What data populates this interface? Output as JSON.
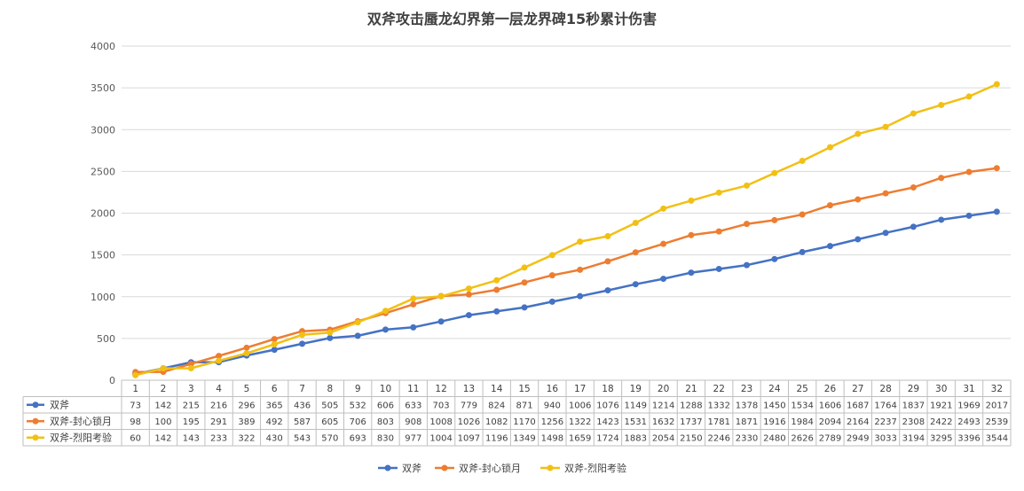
{
  "chart_data": {
    "type": "line",
    "title": "双斧攻击蜃龙幻界第一层龙界碑15秒累计伤害",
    "xlabel": "",
    "ylabel": "",
    "ylim": [
      0,
      4000
    ],
    "yticks": [
      "0",
      "500",
      "1000",
      "1500",
      "2000",
      "2500",
      "3000",
      "3500",
      "4000"
    ],
    "grid": true,
    "legend_position": "bottom",
    "data_table": true,
    "categories": [
      "1",
      "2",
      "3",
      "4",
      "5",
      "6",
      "7",
      "8",
      "9",
      "10",
      "11",
      "12",
      "13",
      "14",
      "15",
      "16",
      "17",
      "18",
      "19",
      "20",
      "21",
      "22",
      "23",
      "24",
      "25",
      "26",
      "27",
      "28",
      "29",
      "30",
      "31",
      "32"
    ],
    "series": [
      {
        "name": "双斧",
        "color": "#4472C4",
        "values": [
          73,
          142,
          215,
          216,
          296,
          365,
          436,
          505,
          532,
          606,
          633,
          703,
          779,
          824,
          871,
          940,
          1006,
          1076,
          1149,
          1214,
          1288,
          1332,
          1378,
          1450,
          1534,
          1606,
          1687,
          1764,
          1837,
          1921,
          1969,
          2017
        ]
      },
      {
        "name": "双斧-封心锁月",
        "color": "#ED7D31",
        "values": [
          98,
          100,
          195,
          291,
          389,
          492,
          587,
          605,
          706,
          803,
          908,
          1008,
          1026,
          1082,
          1170,
          1256,
          1322,
          1423,
          1531,
          1632,
          1737,
          1781,
          1871,
          1916,
          1984,
          2094,
          2164,
          2237,
          2308,
          2422,
          2493,
          2539
        ]
      },
      {
        "name": "双斧-烈阳考验",
        "color": "#F2C014",
        "values": [
          60,
          142,
          143,
          233,
          322,
          430,
          543,
          570,
          693,
          830,
          977,
          1004,
          1097,
          1196,
          1349,
          1498,
          1659,
          1724,
          1883,
          2054,
          2150,
          2246,
          2330,
          2480,
          2626,
          2789,
          2949,
          3033,
          3194,
          3295,
          3396,
          3544
        ]
      }
    ]
  }
}
